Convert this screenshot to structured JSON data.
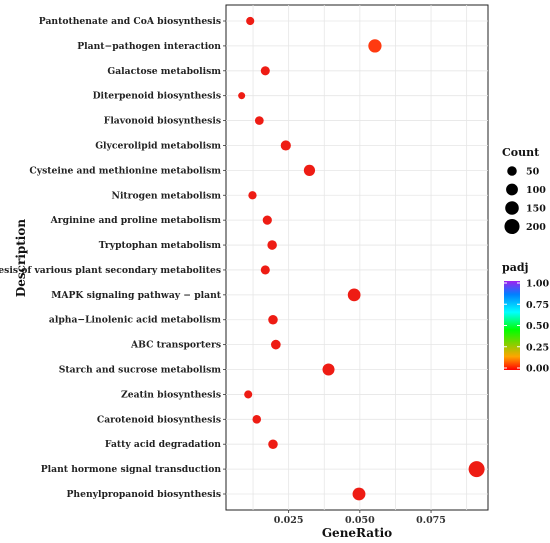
{
  "chart_data": {
    "type": "scatter",
    "xlabel": "GeneRatio",
    "ylabel": "Description",
    "xlim": [
      0.003,
      0.095
    ],
    "x_ticks": [
      0.025,
      0.05,
      0.075
    ],
    "x_tick_labels": [
      "0.025",
      "0.050",
      "0.075"
    ],
    "grid": true,
    "legend_position": "right",
    "size_legend": {
      "title": "Count",
      "values": [
        50,
        100,
        150,
        200
      ],
      "labels": [
        "50",
        "100",
        "150",
        "200"
      ]
    },
    "color_legend": {
      "title": "padj",
      "range": [
        0,
        1
      ],
      "ticks": [
        1.0,
        0.75,
        0.5,
        0.25,
        0.0
      ],
      "tick_labels": [
        "1.00",
        "0.75",
        "0.50",
        "0.25",
        "0.00"
      ],
      "colors": [
        "#ff0000",
        "#ffa500",
        "#00ff00",
        "#00ffff",
        "#0080ff",
        "#a020f0"
      ]
    },
    "points": [
      {
        "term": "Pantothenate and CoA biosynthesis",
        "x": 0.0115,
        "count": 28,
        "padj": 0.02
      },
      {
        "term": "Plant−pathogen interaction",
        "x": 0.0553,
        "count": 140,
        "padj": 0.05
      },
      {
        "term": "Galactose metabolism",
        "x": 0.0168,
        "count": 42,
        "padj": 0.02
      },
      {
        "term": "Diterpenoid biosynthesis",
        "x": 0.0085,
        "count": 15,
        "padj": 0.02
      },
      {
        "term": "Flavonoid biosynthesis",
        "x": 0.0147,
        "count": 36,
        "padj": 0.02
      },
      {
        "term": "Glycerolipid metabolism",
        "x": 0.024,
        "count": 62,
        "padj": 0.01
      },
      {
        "term": "Cysteine and methionine metabolism",
        "x": 0.0323,
        "count": 85,
        "padj": 0.01
      },
      {
        "term": "Nitrogen metabolism",
        "x": 0.0123,
        "count": 30,
        "padj": 0.01
      },
      {
        "term": "Arginine and proline metabolism",
        "x": 0.0175,
        "count": 44,
        "padj": 0.01
      },
      {
        "term": "Tryptophan metabolism",
        "x": 0.0192,
        "count": 50,
        "padj": 0.01
      },
      {
        "term": "Biosynthesis of various plant secondary metabolites",
        "x": 0.0168,
        "count": 42,
        "padj": 0.01
      },
      {
        "term": "MAPK signaling pathway − plant",
        "x": 0.048,
        "count": 125,
        "padj": 0.01
      },
      {
        "term": "alpha−Linolenic acid metabolism",
        "x": 0.0195,
        "count": 50,
        "padj": 0.01
      },
      {
        "term": "ABC transporters",
        "x": 0.0205,
        "count": 52,
        "padj": 0.01
      },
      {
        "term": "Starch and sucrose metabolism",
        "x": 0.039,
        "count": 105,
        "padj": 0.01
      },
      {
        "term": "Zeatin biosynthesis",
        "x": 0.0108,
        "count": 27,
        "padj": 0.01
      },
      {
        "term": "Carotenoid biosynthesis",
        "x": 0.0138,
        "count": 34,
        "padj": 0.01
      },
      {
        "term": "Fatty acid degradation",
        "x": 0.0195,
        "count": 50,
        "padj": 0.01
      },
      {
        "term": "Plant hormone signal transduction",
        "x": 0.091,
        "count": 235,
        "padj": 0.02
      },
      {
        "term": "Phenylpropanoid biosynthesis",
        "x": 0.0497,
        "count": 128,
        "padj": 0.02
      }
    ]
  }
}
